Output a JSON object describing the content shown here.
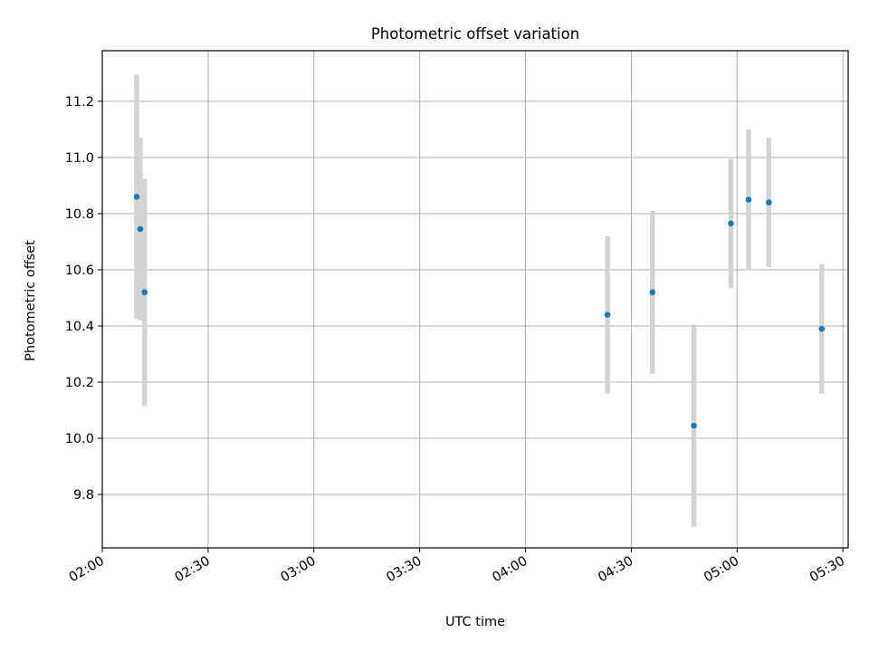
{
  "chart_data": {
    "type": "scatter",
    "title": "Photometric offset variation",
    "xlabel": "UTC time",
    "ylabel": "Photometric offset",
    "grid": true,
    "legend": "none",
    "xlim_minutes": [
      120,
      331.5
    ],
    "ylim": [
      9.61,
      11.38
    ],
    "x_ticks": [
      {
        "minutes": 120,
        "label": "02:00"
      },
      {
        "minutes": 150,
        "label": "02:30"
      },
      {
        "minutes": 180,
        "label": "03:00"
      },
      {
        "minutes": 210,
        "label": "03:30"
      },
      {
        "minutes": 240,
        "label": "04:00"
      },
      {
        "minutes": 270,
        "label": "04:30"
      },
      {
        "minutes": 300,
        "label": "05:00"
      },
      {
        "minutes": 330,
        "label": "05:30"
      }
    ],
    "y_ticks": [
      {
        "value": 9.8,
        "label": "9.8"
      },
      {
        "value": 10.0,
        "label": "10.0"
      },
      {
        "value": 10.2,
        "label": "10.2"
      },
      {
        "value": 10.4,
        "label": "10.4"
      },
      {
        "value": 10.6,
        "label": "10.6"
      },
      {
        "value": 10.8,
        "label": "10.8"
      },
      {
        "value": 11.0,
        "label": "11.0"
      },
      {
        "value": 11.2,
        "label": "11.2"
      }
    ],
    "points": [
      {
        "time": "02:09:45",
        "minutes": 129.75,
        "value": 10.86,
        "err": 0.435
      },
      {
        "time": "02:10:45",
        "minutes": 130.75,
        "value": 10.745,
        "err": 0.325
      },
      {
        "time": "02:12:00",
        "minutes": 132.0,
        "value": 10.52,
        "err": 0.405
      },
      {
        "time": "04:23:15",
        "minutes": 263.25,
        "value": 10.44,
        "err": 0.28
      },
      {
        "time": "04:36:00",
        "minutes": 276.0,
        "value": 10.52,
        "err": 0.29
      },
      {
        "time": "04:47:45",
        "minutes": 287.75,
        "value": 10.045,
        "err": 0.36
      },
      {
        "time": "04:58:15",
        "minutes": 298.25,
        "value": 10.765,
        "err": 0.23
      },
      {
        "time": "05:03:15",
        "minutes": 303.25,
        "value": 10.85,
        "err": 0.25
      },
      {
        "time": "05:09:00",
        "minutes": 309.0,
        "value": 10.84,
        "err": 0.23
      },
      {
        "time": "05:24:00",
        "minutes": 324.0,
        "value": 10.39,
        "err": 0.23
      }
    ],
    "colors": {
      "point": "#1f77b4",
      "errorbar": "#d3d3d3",
      "grid": "#b0b0b0",
      "axis": "#000000"
    }
  }
}
